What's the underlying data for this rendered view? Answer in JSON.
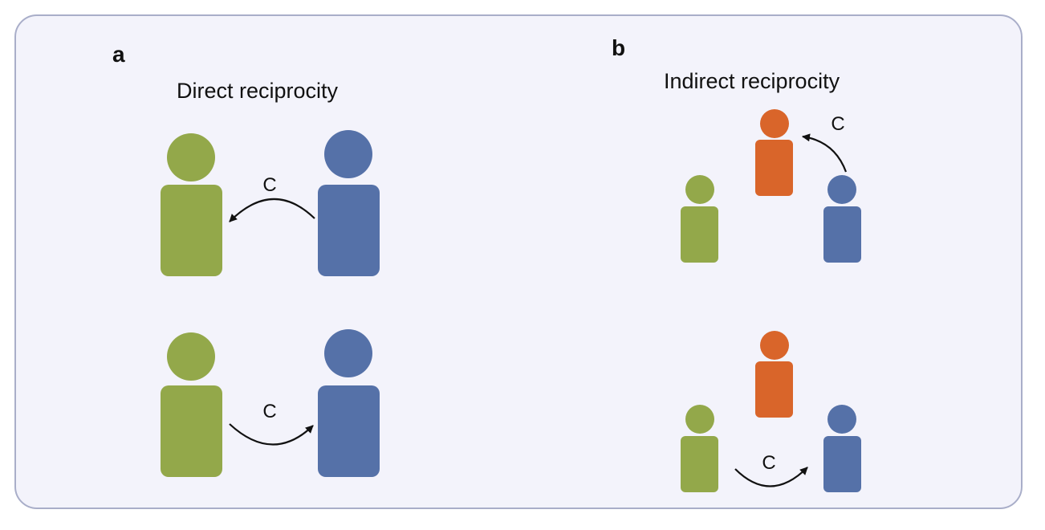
{
  "colors": {
    "green": "#93a84a",
    "blue": "#5571a8",
    "orange": "#d9652a",
    "panel_bg": "#f3f3fb",
    "panel_border": "#a9aec9"
  },
  "panel_a": {
    "label": "a",
    "title": "Direct reciprocity",
    "arrow_label": "C"
  },
  "panel_b": {
    "label": "b",
    "title": "Indirect reciprocity",
    "arrow_label": "C"
  }
}
